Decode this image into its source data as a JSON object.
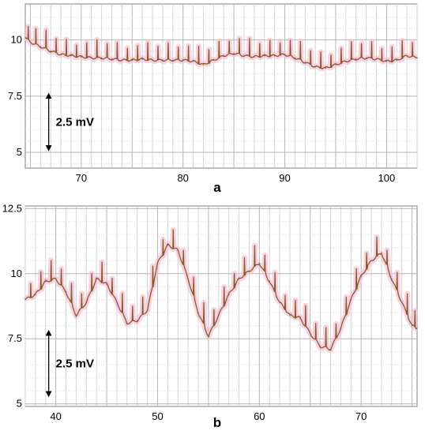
{
  "chart_data": [
    {
      "type": "line",
      "panel_label": "a",
      "xlim": [
        64.5,
        103
      ],
      "ylim": [
        4.3,
        11.6
      ],
      "xticks": [
        "70",
        "80",
        "90",
        "100"
      ],
      "yticks": [
        "5",
        "7.5",
        "10"
      ],
      "xtick_values": [
        70,
        80,
        90,
        100
      ],
      "ytick_values": [
        5,
        7.5,
        10
      ],
      "grid": true,
      "scale_bar": {
        "label": "2.5 mV",
        "from": 5.1,
        "to": 7.6,
        "x": 66.8
      },
      "series": [
        {
          "color": "#8b5a2b",
          "x": [
            64.5,
            65,
            66,
            67,
            68,
            69,
            70,
            71,
            72,
            73,
            74,
            75,
            76,
            77,
            78,
            79,
            80,
            81,
            82,
            83,
            84,
            85,
            86,
            87,
            88,
            89,
            90,
            91,
            92,
            93,
            94,
            95,
            96,
            97,
            98,
            99,
            100,
            101,
            102,
            103
          ],
          "y": [
            10.1,
            9.9,
            9.7,
            9.5,
            9.35,
            9.3,
            9.25,
            9.2,
            9.2,
            9.15,
            9.1,
            9.1,
            9.15,
            9.1,
            9.1,
            9.1,
            9.1,
            9.05,
            8.9,
            9.1,
            9.3,
            9.4,
            9.3,
            9.25,
            9.3,
            9.3,
            9.35,
            9.2,
            9.0,
            8.8,
            8.75,
            8.9,
            9.05,
            9.15,
            9.2,
            9.15,
            9.05,
            9.1,
            9.3,
            9.2
          ]
        }
      ]
    },
    {
      "type": "line",
      "panel_label": "b",
      "xlim": [
        37,
        75.5
      ],
      "ylim": [
        4.9,
        12.6
      ],
      "xticks": [
        "40",
        "50",
        "60",
        "70"
      ],
      "yticks": [
        "5",
        "7.5",
        "10",
        "12.5"
      ],
      "xtick_values": [
        40,
        50,
        60,
        70
      ],
      "ytick_values": [
        5,
        7.5,
        10,
        12.5
      ],
      "grid": true,
      "scale_bar": {
        "label": "2.5 mV",
        "from": 5.3,
        "to": 7.8,
        "x": 39.3
      },
      "series": [
        {
          "color": "#8b5a2b",
          "x": [
            37,
            38,
            39,
            40,
            41,
            42,
            43,
            44,
            45,
            46,
            47,
            48,
            49,
            50,
            51,
            52,
            53,
            54,
            55,
            56,
            57,
            58,
            59,
            60,
            61,
            62,
            63,
            64,
            65,
            66,
            67,
            68,
            69,
            70,
            71,
            72,
            73,
            74,
            75,
            75.5
          ],
          "y": [
            9.0,
            9.2,
            9.7,
            9.8,
            9.3,
            8.4,
            8.9,
            9.8,
            9.6,
            8.9,
            8.1,
            8.2,
            8.6,
            10.4,
            11.1,
            10.9,
            9.8,
            8.5,
            7.6,
            8.4,
            9.2,
            9.8,
            10.1,
            10.4,
            9.7,
            8.9,
            8.4,
            8.3,
            7.7,
            7.2,
            7.1,
            7.9,
            9.0,
            9.9,
            10.5,
            10.8,
            9.8,
            8.9,
            8.0,
            7.9
          ]
        }
      ]
    }
  ]
}
